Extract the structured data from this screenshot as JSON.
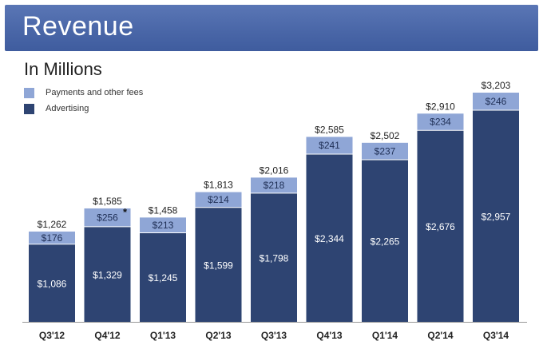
{
  "header": {
    "title": "Revenue"
  },
  "subtitle": "In Millions",
  "colors": {
    "payments": "#8fa6d6",
    "advertising": "#2e4472",
    "axis": "#999999"
  },
  "legend": [
    {
      "label": "Payments and other fees",
      "color_key": "payments"
    },
    {
      "label": "Advertising",
      "color_key": "advertising"
    }
  ],
  "chart_data": {
    "type": "bar",
    "stacked": true,
    "title": "Revenue",
    "subtitle": "In Millions",
    "categories": [
      "Q3'12",
      "Q4'12",
      "Q1'13",
      "Q2'13",
      "Q3'13",
      "Q4'13",
      "Q1'14",
      "Q2'14",
      "Q3'14"
    ],
    "series": [
      {
        "name": "Advertising",
        "values": [
          1086,
          1329,
          1245,
          1599,
          1798,
          2344,
          2265,
          2676,
          2957
        ],
        "labels": [
          "$1,086",
          "$1,329",
          "$1,245",
          "$1,599",
          "$1,798",
          "$2,344",
          "$2,265",
          "$2,676",
          "$2,957"
        ]
      },
      {
        "name": "Payments and other fees",
        "values": [
          176,
          256,
          213,
          214,
          218,
          241,
          237,
          234,
          246
        ],
        "labels": [
          "$176",
          "$256",
          "$213",
          "$214",
          "$218",
          "$241",
          "$237",
          "$234",
          "$246"
        ]
      }
    ],
    "totals": [
      1262,
      1585,
      1458,
      1813,
      2016,
      2585,
      2502,
      2910,
      3203
    ],
    "total_labels": [
      "$1,262",
      "$1,585",
      "$1,458",
      "$1,813",
      "$2,016",
      "$2,585",
      "$2,502",
      "$2,910",
      "$3,203"
    ],
    "annotations": [
      {
        "category": "Q4'12",
        "series": "Payments and other fees",
        "text": "*"
      }
    ],
    "ylim": [
      0,
      3203
    ],
    "xlabel": "",
    "ylabel": "",
    "legend_position": "top-left",
    "grid": false
  }
}
